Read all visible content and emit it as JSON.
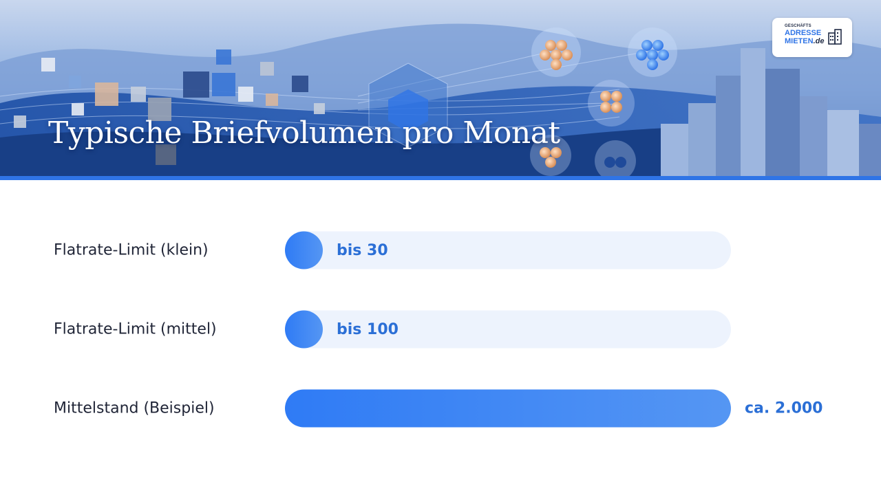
{
  "header": {
    "title": "Typische Briefvolumen pro Monat",
    "logo": {
      "line_small": "GESCHÄFTS",
      "line_1": "ADRESSE",
      "line_2_main": "MIETEN",
      "line_2_suffix": ".de"
    }
  },
  "colors": {
    "accent": "#2f74e6",
    "bar_start": "#2f7bf5",
    "bar_end": "#5596f3",
    "track": "#edf3fd",
    "value_text": "#2b6fd6"
  },
  "chart_data": {
    "type": "bar",
    "orientation": "horizontal",
    "title": "Typische Briefvolumen pro Monat",
    "categories": [
      "Flatrate-Limit (klein)",
      "Flatrate-Limit (mittel)",
      "Mittelstand (Beispiel)"
    ],
    "values": [
      30,
      100,
      2000
    ],
    "value_labels": [
      "bis 30",
      "bis 100",
      "ca. 2.000"
    ],
    "xlim": [
      0,
      2000
    ],
    "grid": false,
    "legend": "none"
  }
}
